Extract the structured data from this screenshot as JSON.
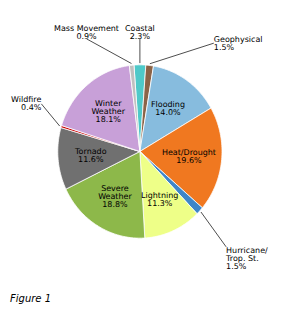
{
  "chart_data": {
    "type": "pie",
    "title": "Figure 1",
    "categories": [
      "Coastal",
      "Geophysical",
      "Flooding",
      "Heat/Drought",
      "Hurricane/\nTrop. St.",
      "Lightning",
      "Severe\nWeather",
      "Tornado",
      "Wildfire",
      "Winter\nWeather",
      "Mass Movement"
    ],
    "values": [
      2.3,
      1.5,
      14.0,
      19.6,
      1.5,
      11.3,
      18.8,
      11.6,
      0.4,
      18.1,
      0.9
    ],
    "value_labels": [
      "2.3%",
      "1.5%",
      "14.0%",
      "19.6%",
      "1.5%",
      "11.3%",
      "18.8%",
      "11.6%",
      "0.4%",
      "18.1%",
      "0.9%"
    ],
    "colors": [
      "#4ec9c9",
      "#8B6347",
      "#87BCDE",
      "#F07820",
      "#3E86C8",
      "#EEFF88",
      "#8DB84A",
      "#707070",
      "#CC0000",
      "#C8A0D8",
      "#C0C0C0"
    ],
    "data_labels": true
  }
}
